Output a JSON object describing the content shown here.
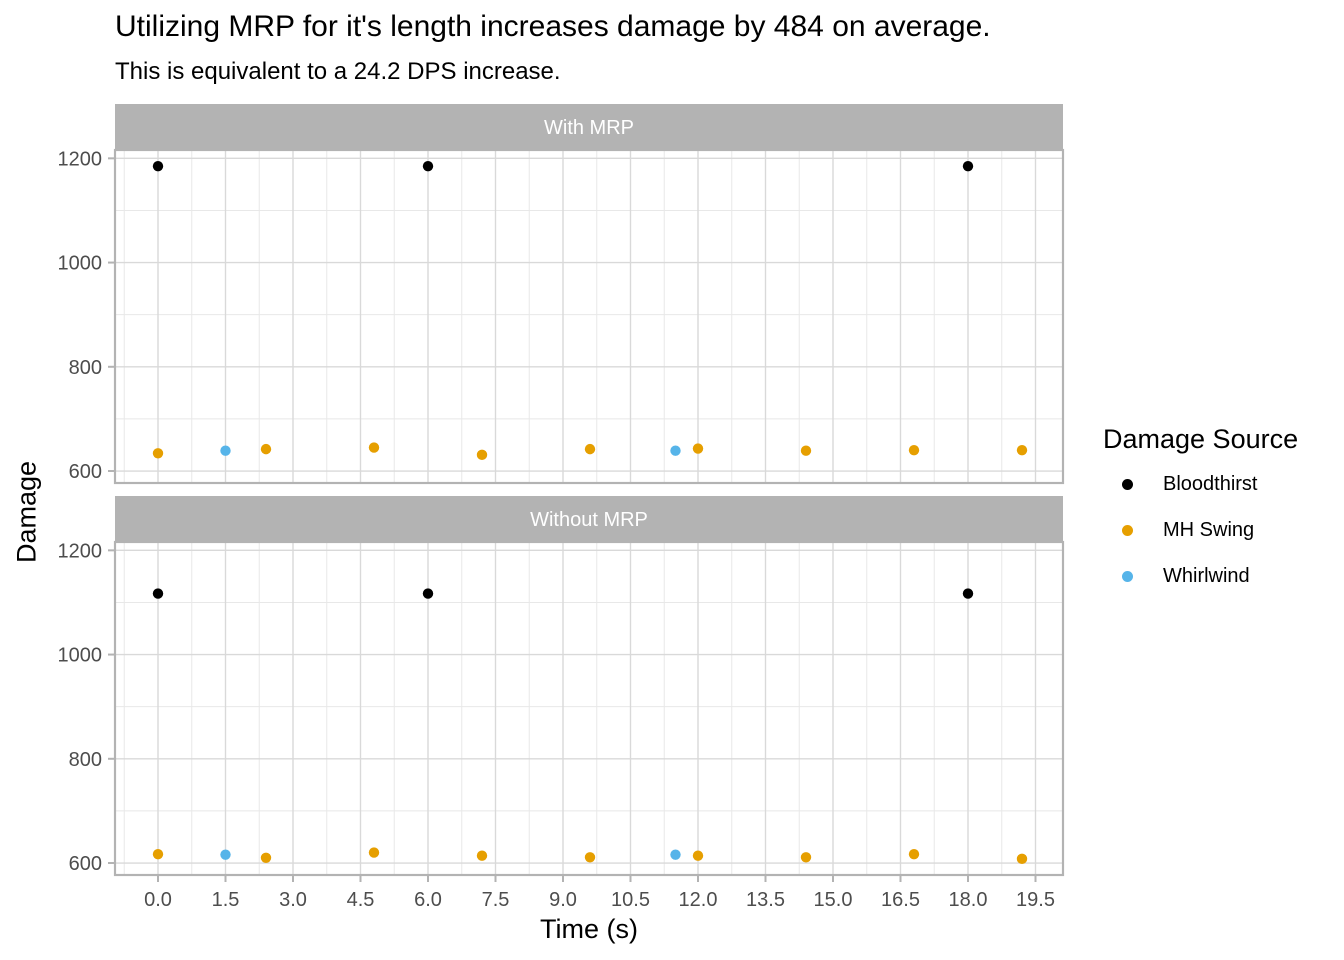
{
  "chart_data": {
    "type": "scatter",
    "title": "Utilizing MRP for it's length increases damage by 484 on average.",
    "subtitle": "This is equivalent to a 24.2 DPS increase.",
    "xlabel": "Time (s)",
    "ylabel": "Damage",
    "x_ticks": [
      0,
      1.5,
      3,
      4.5,
      6,
      7.5,
      9,
      10.5,
      12,
      13.5,
      15,
      16.5,
      18,
      19.5
    ],
    "x_tick_labels": [
      "0.0",
      "1.5",
      "3.0",
      "4.5",
      "6.0",
      "7.5",
      "9.0",
      "10.5",
      "12.0",
      "13.5",
      "15.0",
      "16.5",
      "18.0",
      "19.5"
    ],
    "y_ticks": [
      600,
      800,
      1000,
      1200
    ],
    "y_tick_labels": [
      "600",
      "800",
      "1000",
      "1200"
    ],
    "y_minor_ticks": [
      700,
      900,
      1100
    ],
    "x_minor_start": -0.75,
    "x_minor_step": 1.5,
    "xlim": [
      -0.96,
      20.11
    ],
    "ylim": [
      577,
      1216
    ],
    "grid": true,
    "legend_position": "right",
    "legend": {
      "title": "Damage Source",
      "entries": [
        {
          "label": "Bloodthirst",
          "color": "#000000"
        },
        {
          "label": "MH Swing",
          "color": "#E69F00"
        },
        {
          "label": "Whirlwind",
          "color": "#56B4E9"
        }
      ]
    },
    "facets": [
      {
        "label": "With MRP",
        "series": [
          {
            "name": "Bloodthirst",
            "color": "#000000",
            "points": [
              [
                0,
                1185
              ],
              [
                6,
                1185
              ],
              [
                18,
                1185
              ]
            ]
          },
          {
            "name": "MH Swing",
            "color": "#E69F00",
            "points": [
              [
                0,
                634
              ],
              [
                2.4,
                642
              ],
              [
                4.8,
                645
              ],
              [
                7.2,
                631
              ],
              [
                9.6,
                642
              ],
              [
                12,
                643
              ],
              [
                14.4,
                639
              ],
              [
                16.8,
                640
              ],
              [
                19.2,
                640
              ]
            ]
          },
          {
            "name": "Whirlwind",
            "color": "#56B4E9",
            "points": [
              [
                1.5,
                639
              ],
              [
                11.5,
                639
              ]
            ]
          }
        ]
      },
      {
        "label": "Without MRP",
        "series": [
          {
            "name": "Bloodthirst",
            "color": "#000000",
            "points": [
              [
                0,
                1117
              ],
              [
                6,
                1117
              ],
              [
                18,
                1117
              ]
            ]
          },
          {
            "name": "MH Swing",
            "color": "#E69F00",
            "points": [
              [
                0,
                617
              ],
              [
                2.4,
                610
              ],
              [
                4.8,
                620
              ],
              [
                7.2,
                614
              ],
              [
                9.6,
                611
              ],
              [
                12,
                614
              ],
              [
                14.4,
                611
              ],
              [
                16.8,
                617
              ],
              [
                19.2,
                608
              ]
            ]
          },
          {
            "name": "Whirlwind",
            "color": "#56B4E9",
            "points": [
              [
                1.5,
                616
              ],
              [
                11.5,
                616
              ]
            ]
          }
        ]
      }
    ],
    "style": {
      "strip_fill": "#B3B3B3",
      "strip_text_color": "#FFFFFF",
      "grid_major_color": "#D9D9D9",
      "grid_minor_color": "#E8E8E8",
      "panel_border_color": "#B3B3B3",
      "axis_text_color": "#4D4D4D",
      "tick_mark_color": "#B3B3B3",
      "background": "#FFFFFF",
      "point_radius": 5.2
    }
  }
}
